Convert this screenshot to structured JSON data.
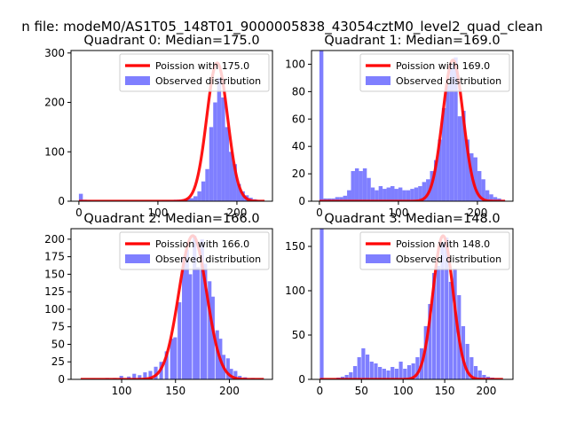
{
  "figure": {
    "suptitle": "n file: modeM0/AS1T05_148T01_9000005838_43054cztM0_level2_quad_clean"
  },
  "colors": {
    "hist": "#7f7fff",
    "poisson": "#ff0000",
    "axis": "#000000"
  },
  "chart_data": [
    {
      "type": "bar",
      "title": "Quadrant 0: Median=175.0",
      "xlim": [
        -10,
        245
      ],
      "ylim": [
        0,
        305
      ],
      "xticks": [
        0,
        100,
        200
      ],
      "yticks": [
        0,
        100,
        200,
        300
      ],
      "legend": {
        "location": "top-right",
        "line_label": "Poission with 175.0",
        "hist_label": "Observed distribution"
      },
      "bin_width": 5,
      "hist": [
        [
          0,
          15
        ],
        [
          5,
          3
        ],
        [
          10,
          2
        ],
        [
          20,
          1
        ],
        [
          30,
          1
        ],
        [
          40,
          1
        ],
        [
          50,
          1
        ],
        [
          60,
          1
        ],
        [
          70,
          1
        ],
        [
          80,
          1
        ],
        [
          90,
          1
        ],
        [
          100,
          1
        ],
        [
          105,
          2
        ],
        [
          110,
          2
        ],
        [
          115,
          2
        ],
        [
          120,
          3
        ],
        [
          125,
          3
        ],
        [
          130,
          4
        ],
        [
          135,
          5
        ],
        [
          140,
          6
        ],
        [
          145,
          10
        ],
        [
          150,
          20
        ],
        [
          155,
          40
        ],
        [
          160,
          65
        ],
        [
          165,
          150
        ],
        [
          170,
          200
        ],
        [
          175,
          250
        ],
        [
          180,
          210
        ],
        [
          185,
          150
        ],
        [
          190,
          100
        ],
        [
          195,
          75
        ],
        [
          200,
          35
        ],
        [
          205,
          20
        ],
        [
          210,
          12
        ],
        [
          215,
          7
        ],
        [
          220,
          4
        ],
        [
          225,
          2
        ],
        [
          230,
          1
        ]
      ],
      "poisson_mean": 175.0,
      "poisson_peak": 280,
      "poisson_range": [
        0,
        235
      ]
    },
    {
      "type": "bar",
      "title": "Quadrant 1: Median=169.0",
      "xlim": [
        -10,
        245
      ],
      "ylim": [
        0,
        110
      ],
      "xticks": [
        0,
        100,
        200
      ],
      "yticks": [
        0,
        20,
        40,
        60,
        80,
        100
      ],
      "legend": {
        "location": "top-right",
        "line_label": "Poission with 169.0",
        "hist_label": "Observed distribution"
      },
      "bin_width": 5,
      "hist": [
        [
          0,
          115
        ],
        [
          5,
          2
        ],
        [
          10,
          2
        ],
        [
          15,
          2
        ],
        [
          20,
          3
        ],
        [
          25,
          3
        ],
        [
          30,
          4
        ],
        [
          35,
          8
        ],
        [
          40,
          22
        ],
        [
          45,
          24
        ],
        [
          50,
          22
        ],
        [
          55,
          24
        ],
        [
          60,
          17
        ],
        [
          65,
          10
        ],
        [
          70,
          8
        ],
        [
          75,
          11
        ],
        [
          80,
          9
        ],
        [
          85,
          10
        ],
        [
          90,
          11
        ],
        [
          95,
          9
        ],
        [
          100,
          10
        ],
        [
          105,
          8
        ],
        [
          110,
          8
        ],
        [
          115,
          9
        ],
        [
          120,
          10
        ],
        [
          125,
          11
        ],
        [
          130,
          14
        ],
        [
          135,
          16
        ],
        [
          140,
          22
        ],
        [
          145,
          30
        ],
        [
          150,
          45
        ],
        [
          155,
          68
        ],
        [
          160,
          85
        ],
        [
          165,
          100
        ],
        [
          170,
          105
        ],
        [
          175,
          62
        ],
        [
          180,
          66
        ],
        [
          185,
          45
        ],
        [
          190,
          35
        ],
        [
          195,
          32
        ],
        [
          200,
          22
        ],
        [
          205,
          16
        ],
        [
          210,
          8
        ],
        [
          215,
          5
        ],
        [
          220,
          3
        ],
        [
          225,
          2
        ],
        [
          230,
          1
        ]
      ],
      "poisson_mean": 169.0,
      "poisson_peak": 103,
      "poisson_range": [
        0,
        235
      ]
    },
    {
      "type": "bar",
      "title": "Quadrant 2: Median=166.0",
      "xlim": [
        53,
        240
      ],
      "ylim": [
        0,
        215
      ],
      "xticks": [
        100,
        150,
        200
      ],
      "yticks": [
        0,
        25,
        50,
        75,
        100,
        125,
        150,
        175,
        200
      ],
      "legend": {
        "location": "top-right",
        "line_label": "Poission with 166.0",
        "hist_label": "Observed distribution"
      },
      "bin_width": 3.4,
      "hist": [
        [
          62,
          1
        ],
        [
          72,
          1
        ],
        [
          85,
          2
        ],
        [
          92,
          2
        ],
        [
          98,
          5
        ],
        [
          105,
          4
        ],
        [
          110,
          8
        ],
        [
          115,
          6
        ],
        [
          120,
          10
        ],
        [
          125,
          12
        ],
        [
          130,
          18
        ],
        [
          135,
          25
        ],
        [
          140,
          40
        ],
        [
          145,
          58
        ],
        [
          148,
          60
        ],
        [
          152,
          110
        ],
        [
          156,
          175
        ],
        [
          159,
          185
        ],
        [
          162,
          150
        ],
        [
          166,
          205
        ],
        [
          169,
          160
        ],
        [
          173,
          200
        ],
        [
          176,
          165
        ],
        [
          180,
          140
        ],
        [
          183,
          118
        ],
        [
          187,
          70
        ],
        [
          190,
          58
        ],
        [
          193,
          35
        ],
        [
          197,
          30
        ],
        [
          200,
          15
        ],
        [
          204,
          12
        ],
        [
          208,
          5
        ],
        [
          213,
          3
        ],
        [
          220,
          2
        ],
        [
          227,
          1
        ]
      ],
      "poisson_mean": 166.0,
      "poisson_peak": 205,
      "poisson_range": [
        62,
        232
      ]
    },
    {
      "type": "bar",
      "title": "Quadrant 3: Median=148.0",
      "xlim": [
        -10,
        232
      ],
      "ylim": [
        0,
        170
      ],
      "xticks": [
        0,
        50,
        100,
        150,
        200
      ],
      "yticks": [
        0,
        50,
        100,
        150
      ],
      "legend": {
        "location": "top-right",
        "line_label": "Poission with 148.0",
        "hist_label": "Observed distribution"
      },
      "bin_width": 4.5,
      "hist": [
        [
          0,
          175
        ],
        [
          20,
          2
        ],
        [
          25,
          3
        ],
        [
          30,
          5
        ],
        [
          35,
          8
        ],
        [
          40,
          15
        ],
        [
          45,
          25
        ],
        [
          50,
          35
        ],
        [
          55,
          28
        ],
        [
          60,
          20
        ],
        [
          65,
          18
        ],
        [
          70,
          14
        ],
        [
          75,
          12
        ],
        [
          80,
          10
        ],
        [
          85,
          14
        ],
        [
          90,
          12
        ],
        [
          95,
          20
        ],
        [
          100,
          12
        ],
        [
          105,
          16
        ],
        [
          110,
          18
        ],
        [
          115,
          25
        ],
        [
          120,
          35
        ],
        [
          125,
          60
        ],
        [
          130,
          85
        ],
        [
          135,
          120
        ],
        [
          140,
          128
        ],
        [
          145,
          155
        ],
        [
          150,
          160
        ],
        [
          155,
          110
        ],
        [
          160,
          125
        ],
        [
          165,
          95
        ],
        [
          170,
          60
        ],
        [
          175,
          40
        ],
        [
          180,
          25
        ],
        [
          185,
          15
        ],
        [
          190,
          10
        ],
        [
          195,
          5
        ],
        [
          200,
          3
        ],
        [
          205,
          2
        ],
        [
          210,
          1
        ]
      ],
      "poisson_mean": 148.0,
      "poisson_peak": 162,
      "poisson_range": [
        0,
        220
      ]
    }
  ]
}
